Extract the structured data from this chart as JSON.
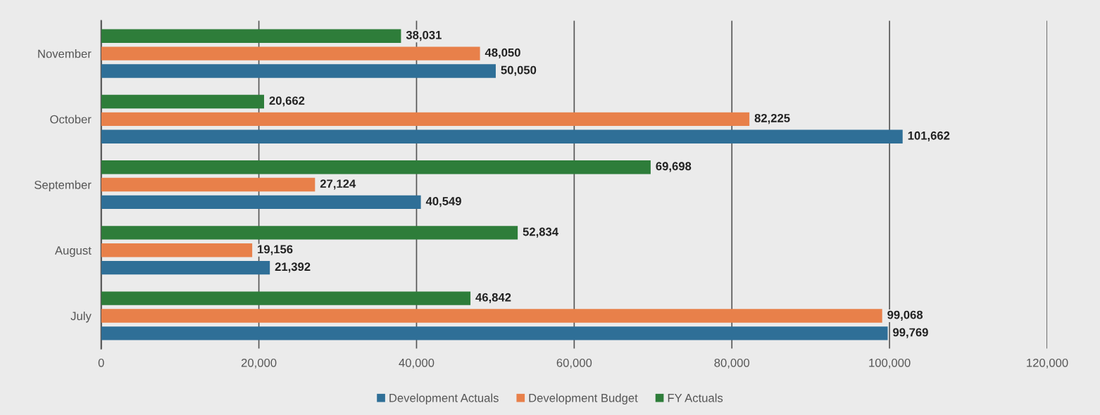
{
  "chart_data": {
    "type": "bar",
    "orientation": "horizontal",
    "categories": [
      "November",
      "October",
      "September",
      "August",
      "July"
    ],
    "series": [
      {
        "name": "Development Actuals",
        "color": "#2f6f97",
        "values": [
          50050,
          101662,
          40549,
          21392,
          99769
        ],
        "value_labels": [
          "50,050",
          "101,662",
          "40,549",
          "21,392",
          "99,769"
        ]
      },
      {
        "name": "Development Budget",
        "color": "#e8804a",
        "values": [
          48050,
          82225,
          27124,
          19156,
          99068
        ],
        "value_labels": [
          "48,050",
          "82,225",
          "27,124",
          "19,156",
          "99,068"
        ]
      },
      {
        "name": "FY Actuals",
        "color": "#2e7d3a",
        "values": [
          38031,
          20662,
          69698,
          52834,
          46842
        ],
        "value_labels": [
          "38,031",
          "20,662",
          "69,698",
          "52,834",
          "46,842"
        ]
      }
    ],
    "xlim": [
      0,
      120000
    ],
    "xticks": [
      {
        "value": 0,
        "label": "0"
      },
      {
        "value": 20000,
        "label": "20,000"
      },
      {
        "value": 40000,
        "label": "40,000"
      },
      {
        "value": 60000,
        "label": "60,000"
      },
      {
        "value": 80000,
        "label": "80,000"
      },
      {
        "value": 100000,
        "label": "100,000"
      },
      {
        "value": 120000,
        "label": "120,000"
      }
    ],
    "grid": "x",
    "legend": "bottom"
  }
}
